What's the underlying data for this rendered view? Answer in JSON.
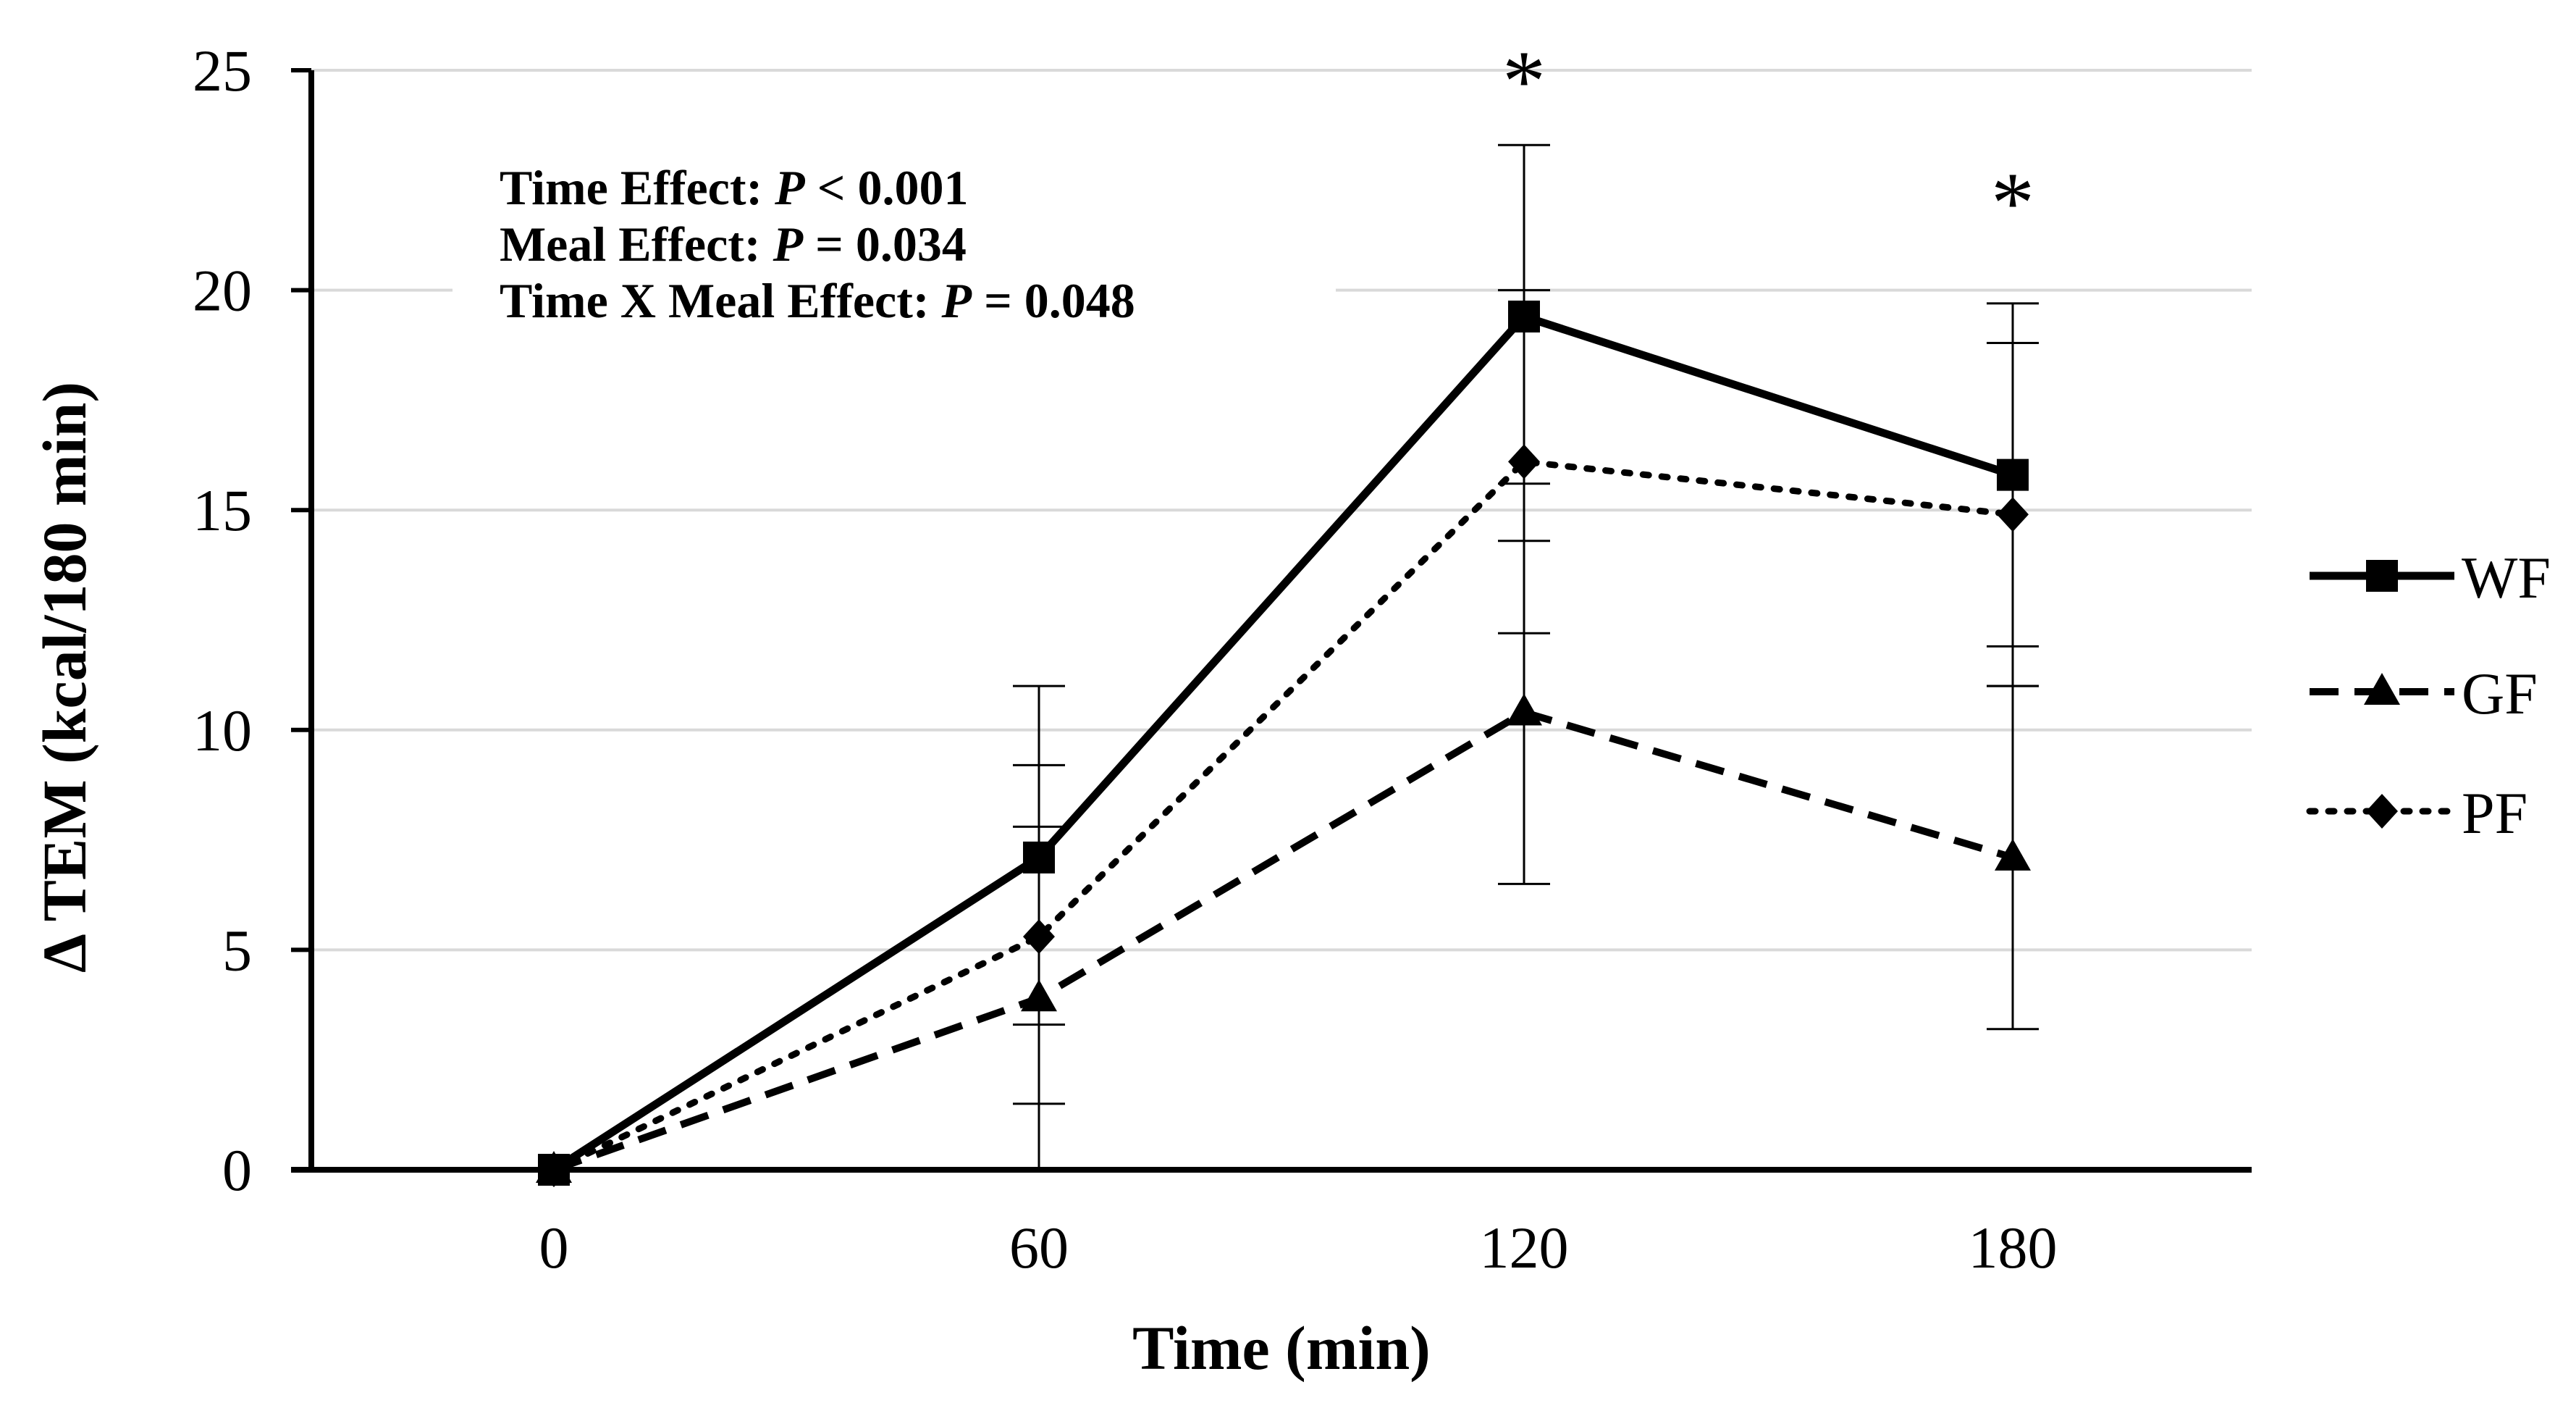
{
  "chart_data": {
    "type": "line",
    "title": "",
    "xlabel": "Time (min)",
    "ylabel": "Δ TEM (kcal/180 min)",
    "categories": [
      "0",
      "60",
      "120",
      "180"
    ],
    "x": [
      0,
      60,
      120,
      180
    ],
    "ylim": [
      0,
      25
    ],
    "yticks": [
      0,
      5,
      10,
      15,
      20,
      25
    ],
    "grid": "horizontal",
    "legend_position": "right",
    "series": [
      {
        "name": "WF",
        "line_style": "solid",
        "marker": "square",
        "values": [
          0,
          7.1,
          19.4,
          15.8
        ],
        "errors_upper": [
          0,
          11.0,
          23.3,
          19.7
        ],
        "errors_lower": [
          0,
          3.3,
          15.6,
          11.9
        ]
      },
      {
        "name": "GF",
        "line_style": "dashed",
        "marker": "triangle",
        "values": [
          0,
          3.9,
          10.4,
          7.1
        ],
        "errors_upper": [
          0,
          7.8,
          14.3,
          11.0
        ],
        "errors_lower": [
          0,
          0,
          6.5,
          3.2
        ]
      },
      {
        "name": "PF",
        "line_style": "dotted",
        "marker": "diamond",
        "values": [
          0,
          5.3,
          16.1,
          14.9
        ],
        "errors_upper": [
          0,
          9.2,
          20.0,
          18.8
        ],
        "errors_lower": [
          0,
          1.5,
          12.2,
          11.0
        ]
      }
    ],
    "annotations": {
      "stats": [
        {
          "label": "Time Effect: ",
          "p": "P",
          "value": " < 0.001"
        },
        {
          "label": "Meal Effect: ",
          "p": "P",
          "value": " = 0.034"
        },
        {
          "label": "Time X Meal Effect: ",
          "p": "P",
          "value": " = 0.048"
        }
      ],
      "significance_marker": "*",
      "significance_at_x": [
        120,
        180
      ]
    }
  }
}
